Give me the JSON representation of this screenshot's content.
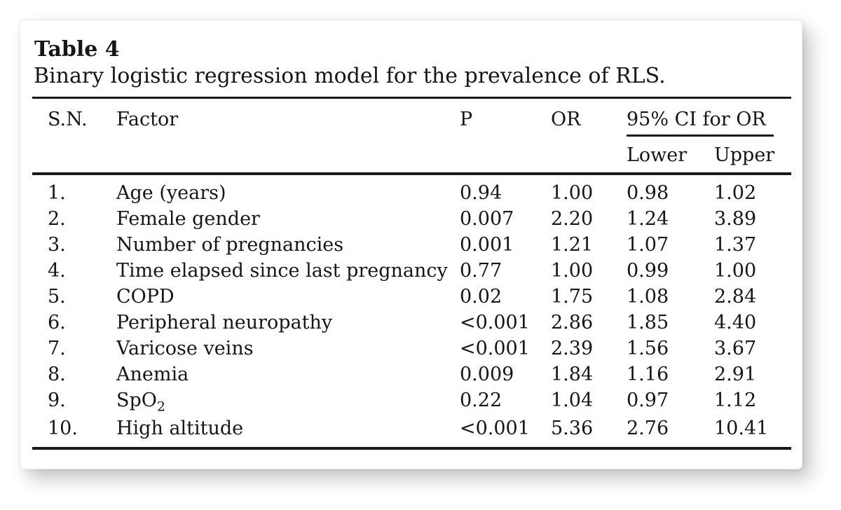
{
  "table": {
    "title": "Table 4",
    "caption": "Binary logistic regression model for the prevalence of RLS.",
    "columns": {
      "sn": "S.N.",
      "factor": "Factor",
      "p": "P",
      "or": "OR",
      "ci_group": "95% CI for OR",
      "ci_lower": "Lower",
      "ci_upper": "Upper"
    },
    "rows": [
      {
        "sn": "1.",
        "factor": "Age (years)",
        "p": "0.94",
        "or": "1.00",
        "lower": "0.98",
        "upper": "1.02"
      },
      {
        "sn": "2.",
        "factor": "Female gender",
        "p": "0.007",
        "or": "2.20",
        "lower": "1.24",
        "upper": "3.89"
      },
      {
        "sn": "3.",
        "factor": "Number of pregnancies",
        "p": "0.001",
        "or": "1.21",
        "lower": "1.07",
        "upper": "1.37"
      },
      {
        "sn": "4.",
        "factor": "Time elapsed since last pregnancy",
        "p": "0.77",
        "or": "1.00",
        "lower": "0.99",
        "upper": "1.00"
      },
      {
        "sn": "5.",
        "factor": "COPD",
        "p": "0.02",
        "or": "1.75",
        "lower": "1.08",
        "upper": "2.84"
      },
      {
        "sn": "6.",
        "factor": "Peripheral neuropathy",
        "p": "<0.001",
        "or": "2.86",
        "lower": "1.85",
        "upper": "4.40"
      },
      {
        "sn": "7.",
        "factor": "Varicose veins",
        "p": "<0.001",
        "or": "2.39",
        "lower": "1.56",
        "upper": "3.67"
      },
      {
        "sn": "8.",
        "factor": "Anemia",
        "p": "0.009",
        "or": "1.84",
        "lower": "1.16",
        "upper": "2.91"
      },
      {
        "sn": "9.",
        "factor": "SpO",
        "factor_sub": "2",
        "p": "0.22",
        "or": "1.04",
        "lower": "0.97",
        "upper": "1.12"
      },
      {
        "sn": "10.",
        "factor": "High altitude",
        "p": "<0.001",
        "or": "5.36",
        "lower": "2.76",
        "upper": "10.41"
      }
    ]
  },
  "colors": {
    "text": "#161616",
    "rule": "#1b1b1b",
    "card_background": "#ffffff",
    "page_background": "#ffffff"
  }
}
